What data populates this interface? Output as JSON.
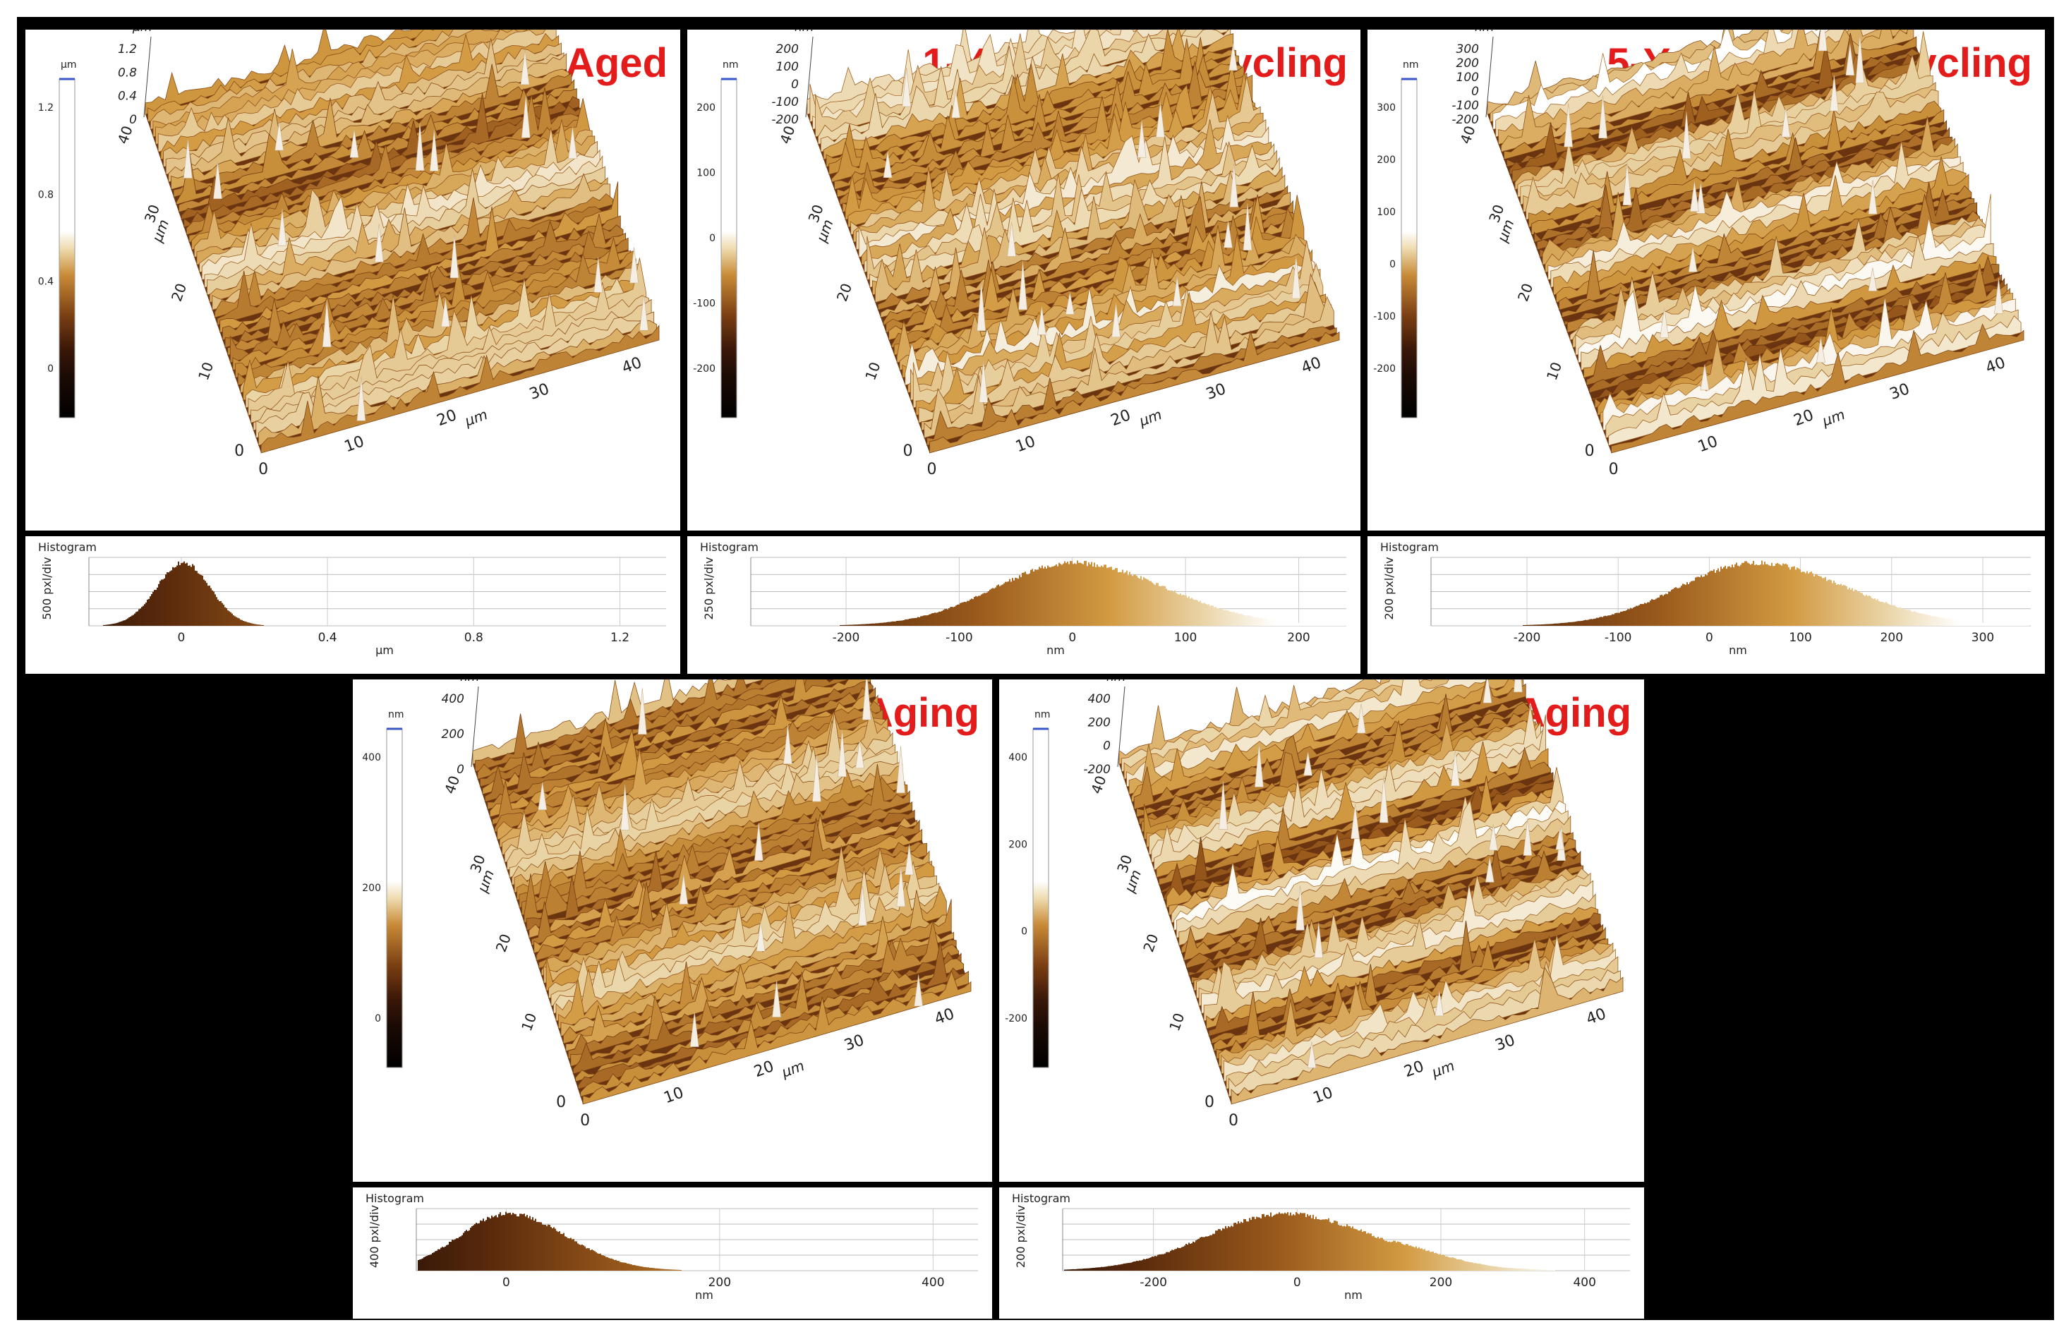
{
  "panels": [
    {
      "title": "Non-Aged",
      "unit": "µm",
      "zscale": [
        "1.2",
        "0.8",
        "0.4",
        "0"
      ],
      "colorbar_ticks": [
        "1.2",
        "0.8",
        "0.4",
        "0"
      ],
      "colorbar_unit": "µm",
      "axis_unit": "µm",
      "x_ticks": [
        "10",
        "20",
        "30",
        "40"
      ],
      "y_ticks": [
        "10",
        "20",
        "30",
        "40"
      ],
      "origin": "0",
      "histogram": {
        "label": "Histogram",
        "ylabel": "500 pxl/div",
        "x_ticks": [
          "0",
          "0.4",
          "0.8",
          "1.2"
        ],
        "unit": "µm"
      }
    },
    {
      "title": "1-Year Thermocycling",
      "unit": "nm",
      "zscale": [
        "200",
        "100",
        "0",
        "-100",
        "-200"
      ],
      "colorbar_ticks": [
        "200",
        "100",
        "0",
        "-100",
        "-200"
      ],
      "colorbar_unit": "nm",
      "axis_unit": "µm",
      "x_ticks": [
        "10",
        "20",
        "30",
        "40"
      ],
      "y_ticks": [
        "10",
        "20",
        "30",
        "40"
      ],
      "origin": "0",
      "histogram": {
        "label": "Histogram",
        "ylabel": "250 pxl/div",
        "x_ticks": [
          "-200",
          "-100",
          "0",
          "100",
          "200"
        ],
        "unit": "nm"
      }
    },
    {
      "title": "5-Year Thermocycling",
      "unit": "nm",
      "zscale": [
        "300",
        "200",
        "100",
        "0",
        "-100",
        "-200"
      ],
      "colorbar_ticks": [
        "300",
        "200",
        "100",
        "0",
        "-100",
        "-200"
      ],
      "colorbar_unit": "nm",
      "axis_unit": "µm",
      "x_ticks": [
        "10",
        "20",
        "30",
        "40"
      ],
      "y_ticks": [
        "10",
        "20",
        "30",
        "40"
      ],
      "origin": "0",
      "histogram": {
        "label": "Histogram",
        "ylabel": "200 pxl/div",
        "x_ticks": [
          "-200",
          "-100",
          "0",
          "100",
          "200",
          "300"
        ],
        "unit": "nm"
      }
    },
    {
      "title": "1-Year UV Aging",
      "unit": "nm",
      "zscale": [
        "400",
        "200",
        "0"
      ],
      "colorbar_ticks": [
        "400",
        "200",
        "0"
      ],
      "colorbar_unit": "nm",
      "axis_unit": "µm",
      "x_ticks": [
        "10",
        "20",
        "30",
        "40"
      ],
      "y_ticks": [
        "10",
        "20",
        "30",
        "40"
      ],
      "origin": "0",
      "histogram": {
        "label": "Histogram",
        "ylabel": "400 pxl/div",
        "x_ticks": [
          "0",
          "200",
          "400"
        ],
        "unit": "nm"
      }
    },
    {
      "title": "5-Year UV Aging",
      "unit": "nm",
      "zscale": [
        "400",
        "200",
        "0",
        "-200"
      ],
      "colorbar_ticks": [
        "400",
        "200",
        "0",
        "-200"
      ],
      "colorbar_unit": "nm",
      "axis_unit": "µm",
      "x_ticks": [
        "10",
        "20",
        "30",
        "40"
      ],
      "y_ticks": [
        "10",
        "20",
        "30",
        "40"
      ],
      "origin": "0",
      "histogram": {
        "label": "Histogram",
        "ylabel": "200 pxl/div",
        "x_ticks": [
          "-200",
          "0",
          "200",
          "400"
        ],
        "unit": "nm"
      }
    }
  ],
  "colors": {
    "title": "#e41b1b",
    "dark": "#2a0f05",
    "mid": "#8a4a12",
    "light": "#d9a441",
    "peak": "#f4eee4"
  }
}
